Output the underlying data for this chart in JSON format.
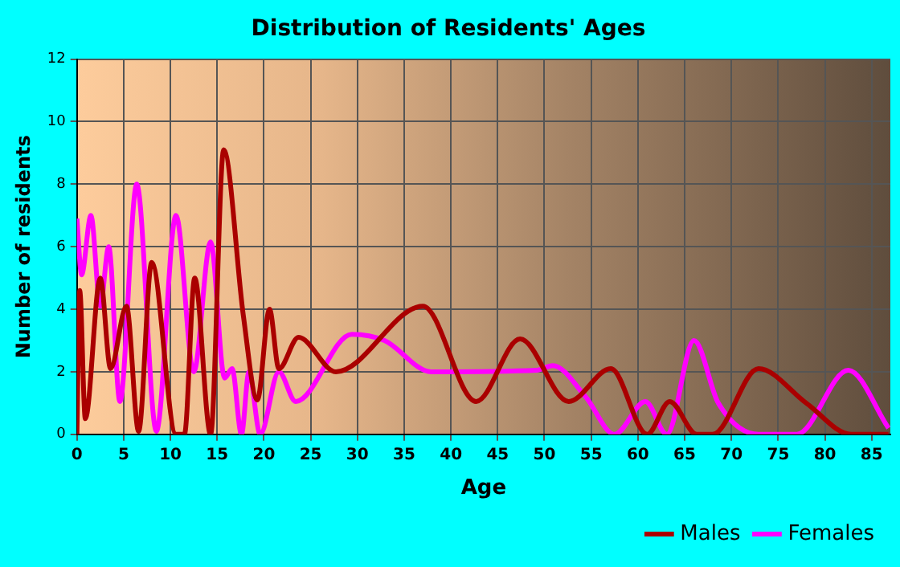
{
  "chart_data": {
    "type": "line",
    "title": "Distribution of Residents' Ages",
    "xlabel": "Age",
    "ylabel": "Number of residents",
    "xlim": [
      0,
      87
    ],
    "xticks": [
      0,
      5,
      10,
      15,
      20,
      25,
      30,
      35,
      40,
      45,
      50,
      55,
      60,
      65,
      70,
      75,
      80,
      85
    ],
    "ylim": [
      0,
      12
    ],
    "yticks": [
      0,
      2,
      4,
      6,
      8,
      10,
      12
    ],
    "grid": true,
    "legend": "bottom right",
    "marker": "none",
    "line_style": "solid",
    "series": [
      {
        "name": "Males",
        "color": "#aa0000",
        "x": [
          0,
          0.3,
          0.9,
          2.5,
          3.6,
          5.3,
          6.6,
          8,
          10.6,
          11.5,
          12.6,
          14.3,
          15.7,
          17.8,
          19.3,
          20.6,
          21.6,
          23.7,
          27.7,
          37,
          42.7,
          47.4,
          52.6,
          57.1,
          61,
          63.4,
          66.3,
          68,
          72.9,
          78,
          82.8,
          86.8
        ],
        "values": [
          0,
          4.6,
          0.5,
          5,
          2.1,
          4.1,
          0.1,
          5.5,
          0,
          0,
          5,
          0,
          9.1,
          3.8,
          1.1,
          4,
          2.1,
          3.1,
          2,
          4.1,
          1.05,
          3.05,
          1.05,
          2.1,
          0,
          1.05,
          0,
          0,
          2.1,
          1,
          0,
          0
        ]
      },
      {
        "name": "Females",
        "color": "#ff00ff",
        "x": [
          0,
          0.5,
          1.5,
          2.5,
          3.4,
          4.6,
          6.4,
          8.5,
          10.6,
          12.5,
          14.3,
          15.8,
          16.6,
          17.6,
          18.4,
          19.6,
          21.6,
          23.4,
          29.4,
          32.9,
          37.9,
          49.2,
          50.9,
          54.4,
          57.5,
          60.8,
          63.1,
          66,
          68.6,
          72.9,
          77,
          82.5,
          86.8
        ],
        "values": [
          6.9,
          5.1,
          7,
          4.1,
          6,
          1.05,
          8,
          0.1,
          7,
          2,
          6.15,
          1.8,
          2.1,
          0,
          2,
          0,
          2,
          1.05,
          3.2,
          3,
          2,
          2.05,
          2.2,
          1.2,
          0,
          1.05,
          0,
          3,
          1,
          0,
          0,
          2.05,
          0.2
        ]
      }
    ]
  }
}
